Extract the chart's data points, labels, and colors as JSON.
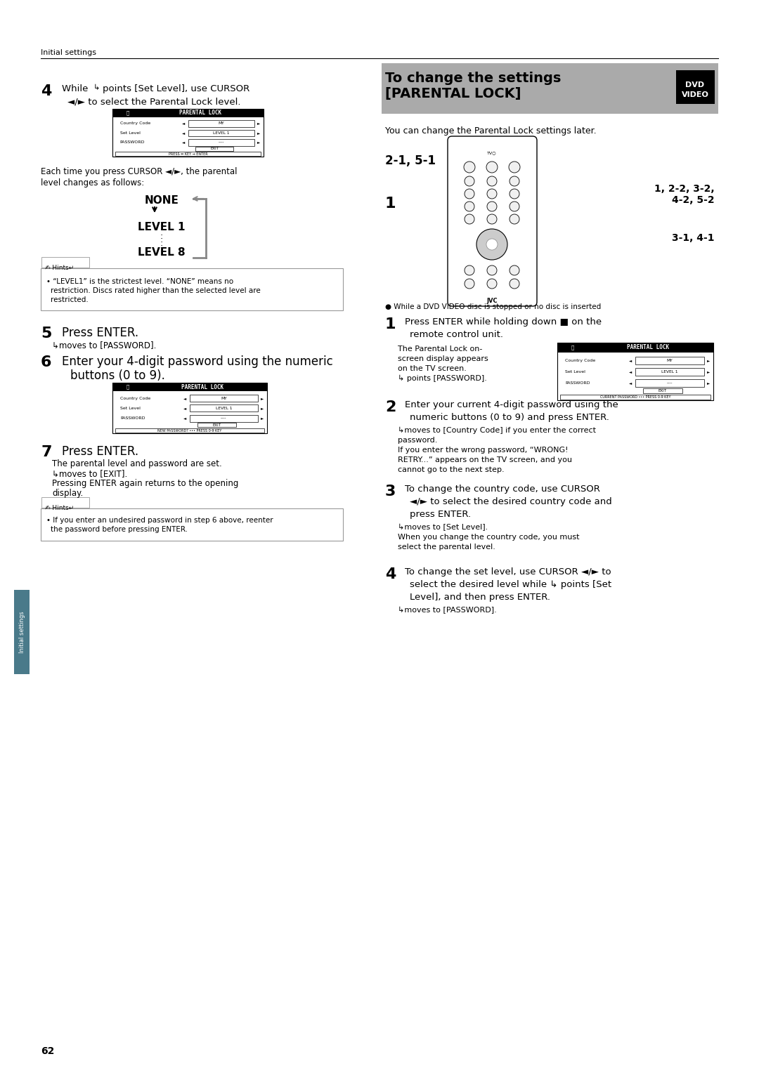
{
  "page_bg": "#ffffff",
  "page_width": 10.8,
  "page_height": 15.28,
  "header_text": "Initial settings",
  "footer_page_num": "62",
  "step4_text1": "While",
  "step4_cursor_icon": true,
  "step4_text2": "points [Set Level], use CURSOR",
  "step4_text3": "◄/► to select the Parental Lock level.",
  "step4_screen_fields": [
    "Country Code",
    "Set Level",
    "PASSWORD"
  ],
  "step4_screen_values": [
    "MY",
    "LEVEL 1",
    "----"
  ],
  "step4_screen_bottom": "PRESS ⇔ KEY → ENTER",
  "caption1": "Each time you press CURSOR ◄/►, the parental",
  "caption2": "level changes as follows:",
  "hints1_text1": "“LEVEL1” is the strictest level. “NONE” means no",
  "hints1_text2": "restriction. Discs rated higher than the selected level are",
  "hints1_text3": "restricted.",
  "step5_label": "5",
  "step5_text": "Press ENTER.",
  "step5_sub": "moves to [PASSWORD].",
  "step6_label": "6",
  "step6_text1": "Enter your 4-digit password using the numeric",
  "step6_text2": "buttons (0 to 9).",
  "step6_screen_fields": [
    "Country Code",
    "Set Level",
    "PASSWORD"
  ],
  "step6_screen_values": [
    "MY",
    "LEVEL 1",
    "----"
  ],
  "step6_screen_bottom": "NEW PASSWORD? ••• PRESS 0-9 KEY",
  "step7_label": "7",
  "step7_text": "Press ENTER.",
  "step7_sub1": "The parental level and password are set.",
  "step7_sub2": "moves to [EXIT].",
  "step7_sub3": "Pressing ENTER again returns to the opening",
  "step7_sub4": "display.",
  "hints2_text1": "If you enter an undesired password in step 6 above, reenter",
  "hints2_text2": "the password before pressing ENTER.",
  "right_bg": "#aaaaaa",
  "right_title1": "To change the settings",
  "right_title2": "[PARENTAL LOCK]",
  "right_intro": "You can change the Parental Lock settings later.",
  "right_label_2151": "2-1, 5-1",
  "right_label_1": "1",
  "right_label_12232_4252": "1, 2-2, 3-2,\n4-2, 5-2",
  "right_label_3141": "3-1, 4-1",
  "disc_note": "While a DVD VIDEO disc is stopped or no disc is inserted",
  "rs1_label": "1",
  "rs1_text1": "Press ENTER while holding down ■ on the",
  "rs1_text2": "remote control unit.",
  "rs1_sub1": "The Parental Lock on-",
  "rs1_sub2": "screen display appears",
  "rs1_sub3": "on the TV screen.",
  "rs1_sub4": "points [PASSWORD].",
  "rs1_screen_fields": [
    "Country Code",
    "Set Level",
    "PASSWORD"
  ],
  "rs1_screen_values": [
    "MY",
    "LEVEL 1",
    "----"
  ],
  "rs1_screen_bottom": "CURRENT PASSWORD ••• PRESS 0-9 KEY",
  "rs2_label": "2",
  "rs2_text1": "Enter your current 4-digit password using the",
  "rs2_text2": "numeric buttons (0 to 9) and press ENTER.",
  "rs2_sub1": "moves to [Country Code] if you enter the correct",
  "rs2_sub2": "password.",
  "rs2_sub3": "If you enter the wrong password, “WRONG!",
  "rs2_sub4": "RETRY...” appears on the TV screen, and you",
  "rs2_sub5": "cannot go to the next step.",
  "rs3_label": "3",
  "rs3_text1": "To change the country code, use CURSOR",
  "rs3_text2": "◄/► to select the desired country code and",
  "rs3_text3": "press ENTER.",
  "rs3_sub1": "moves to [Set Level].",
  "rs3_sub2": "When you change the country code, you must",
  "rs3_sub3": "select the parental level.",
  "rs4_label": "4",
  "rs4_text1": "To change the set level, use CURSOR ◄/► to",
  "rs4_text2": "select the desired level while",
  "rs4_text3": "points [Set",
  "rs4_text4": "Level], and then press ENTER.",
  "rs4_sub1": "moves to [PASSWORD].",
  "tab_color": "#4a7a8a",
  "tab_text": "Initial settings"
}
